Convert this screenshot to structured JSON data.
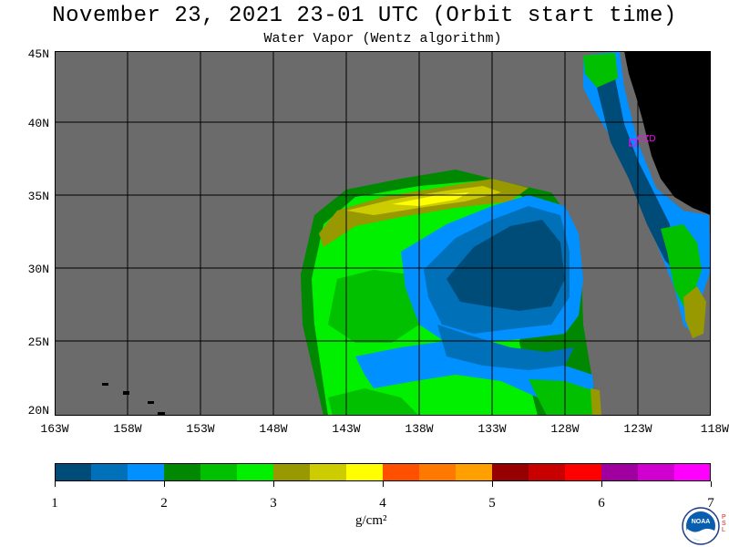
{
  "header": {
    "title": "November 23, 2021  23-01 UTC  (Orbit start time)",
    "subtitle": "Water Vapor (Wentz algorithm)"
  },
  "map": {
    "y_labels": [
      "45N",
      "40N",
      "35N",
      "30N",
      "25N",
      "20N"
    ],
    "x_labels": [
      "163W",
      "158W",
      "153W",
      "148W",
      "143W",
      "138W",
      "133W",
      "128W",
      "123W",
      "118W"
    ],
    "station_label": "CZD",
    "colors": {
      "no_data": "#6b6b6b",
      "land": "#000000",
      "station": "#ff00ff",
      "grid": "#000000"
    }
  },
  "colorbar": {
    "colors": [
      "#004c78",
      "#0070b8",
      "#0090ff",
      "#008800",
      "#00c000",
      "#00f000",
      "#989800",
      "#cccc00",
      "#ffff00",
      "#ff5000",
      "#ff7800",
      "#ffa000",
      "#960000",
      "#c80000",
      "#ff0000",
      "#a000a0",
      "#d000d0",
      "#ff00ff"
    ],
    "tick_labels": [
      "1",
      "2",
      "3",
      "4",
      "5",
      "6",
      "7"
    ],
    "units": "g/cm²"
  },
  "logo": {
    "text": "NOAA",
    "side_text": "PSL"
  }
}
